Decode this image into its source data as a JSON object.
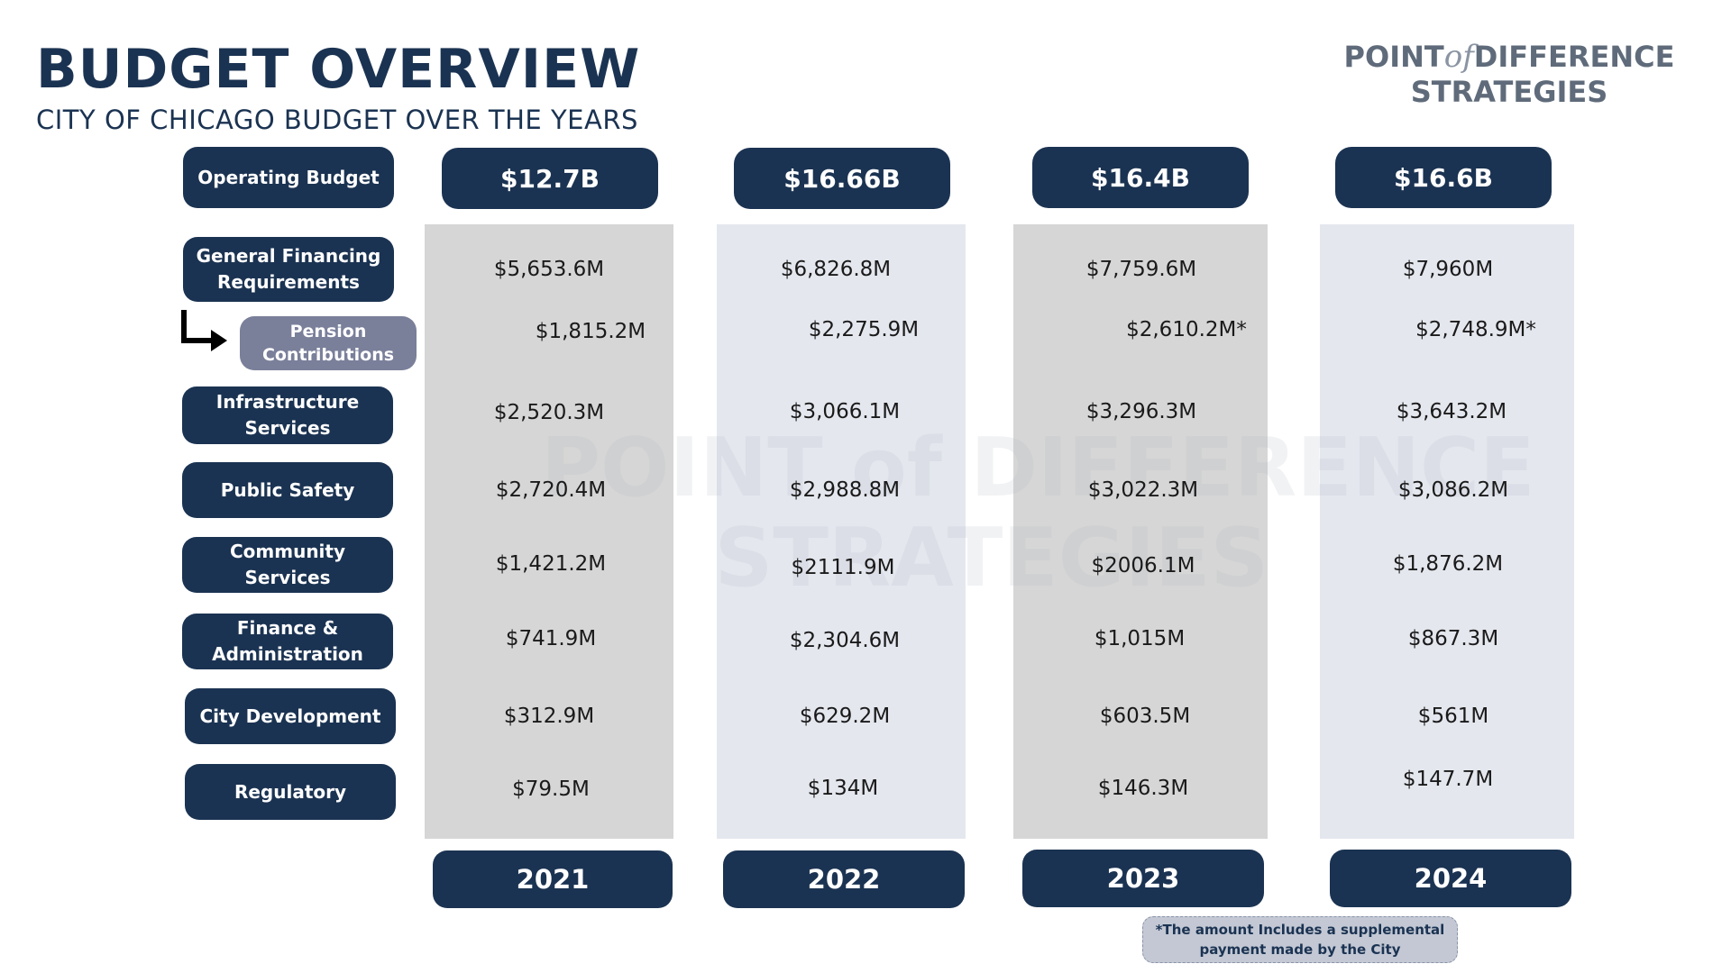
{
  "header": {
    "title": "BUDGET OVERVIEW",
    "subtitle": "CITY OF CHICAGO BUDGET OVER THE YEARS"
  },
  "brand": {
    "line1_left": "POINT",
    "line1_of": "of",
    "line1_right": "DIFFERENCE",
    "line2": "STRATEGIES"
  },
  "watermark": {
    "line1": "POINT of DIFFERENCE",
    "line2": "STRATEGIES"
  },
  "operating_budget_label": "Operating Budget",
  "years": [
    "2021",
    "2022",
    "2023",
    "2024"
  ],
  "totals": [
    "$12.7B",
    "$16.66B",
    "$16.4B",
    "$16.6B"
  ],
  "categories": [
    {
      "label": "General Financing Requirements",
      "values": [
        "$5,653.6M",
        "$6,826.8M",
        "$7,759.6M",
        "$7,960M"
      ]
    },
    {
      "label": "Pension Contributions",
      "sub": true,
      "values": [
        "$1,815.2M",
        "$2,275.9M",
        "$2,610.2M*",
        "$2,748.9M*"
      ]
    },
    {
      "label": "Infrastructure Services",
      "values": [
        "$2,520.3M",
        "$3,066.1M",
        "$3,296.3M",
        "$3,643.2M"
      ]
    },
    {
      "label": "Public Safety",
      "values": [
        "$2,720.4M",
        "$2,988.8M",
        "$3,022.3M",
        "$3,086.2M"
      ]
    },
    {
      "label": "Community Services",
      "values": [
        "$1,421.2M",
        "$2111.9M",
        "$2006.1M",
        "$1,876.2M"
      ]
    },
    {
      "label": "Finance & Administration",
      "values": [
        "$741.9M",
        "$2,304.6M",
        "$1,015M",
        "$867.3M"
      ]
    },
    {
      "label": "City Development",
      "values": [
        "$312.9M",
        "$629.2M",
        "$603.5M",
        "$561M"
      ]
    },
    {
      "label": "Regulatory",
      "values": [
        "$79.5M",
        "$134M",
        "$146.3M",
        "$147.7M"
      ]
    }
  ],
  "footnote": "*The amount Includes a supplemental payment made by the City",
  "colors": {
    "navy": "#1b3352",
    "pension_pill": "#7a7f9a",
    "column_grey": "#d6d6d6",
    "column_blue": "#e4e7ee"
  },
  "icons": {
    "pension_arrow": "arrow-down-right-icon"
  }
}
